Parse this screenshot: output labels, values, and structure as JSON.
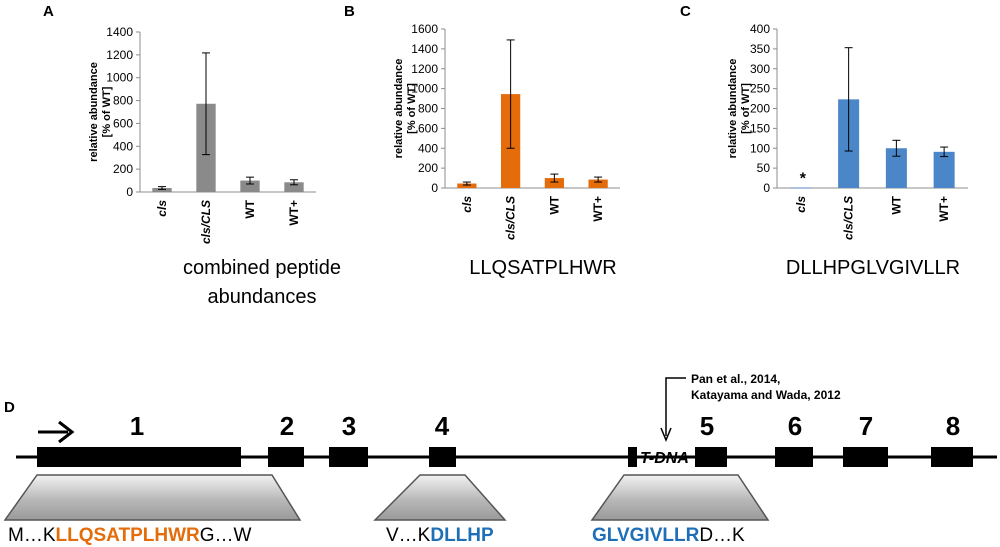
{
  "chart_data": [
    {
      "type": "bar",
      "panel": "A",
      "title": "combined peptide abundances",
      "ylabel": "relative abundance [% of WT]",
      "categories": [
        "cls",
        "cls/CLS",
        "WT",
        "WT+"
      ],
      "values": [
        35,
        772,
        100,
        85
      ],
      "errors": [
        12,
        445,
        30,
        22
      ],
      "ylim": [
        0,
        1400
      ],
      "ticks": [
        0,
        200,
        400,
        600,
        800,
        1000,
        1200,
        1400
      ],
      "color": "#8a8a8a",
      "caption": [
        "combined peptide",
        "abundances"
      ]
    },
    {
      "type": "bar",
      "panel": "B",
      "title": "LLQSATPLHWR",
      "ylabel": "relative abundance [% of WT]",
      "categories": [
        "cls",
        "cls/CLS",
        "WT",
        "WT+"
      ],
      "values": [
        45,
        945,
        100,
        85
      ],
      "errors": [
        15,
        545,
        40,
        25
      ],
      "ylim": [
        0,
        1600
      ],
      "ticks": [
        0,
        200,
        400,
        600,
        800,
        1000,
        1200,
        1400,
        1600
      ],
      "color": "#e46c0a",
      "caption": [
        "LLQSATPLHWR"
      ]
    },
    {
      "type": "bar",
      "panel": "C",
      "title": "DLLHPGLVGIVLLR",
      "ylabel": "relative abundance [% of WT]",
      "categories": [
        "cls",
        "cls/CLS",
        "WT",
        "WT+"
      ],
      "values": [
        1,
        223,
        100,
        91
      ],
      "errors": [
        0,
        130,
        20,
        12
      ],
      "ylim": [
        0,
        400
      ],
      "ticks": [
        0,
        50,
        100,
        150,
        200,
        250,
        300,
        350,
        400
      ],
      "color": "#4a86c8",
      "annotation": "*",
      "caption": [
        "DLLHPGLVGIVLLR"
      ]
    }
  ],
  "gene_diagram": {
    "panel": "D",
    "exons": [
      "1",
      "2",
      "3",
      "4",
      "5",
      "6",
      "7",
      "8"
    ],
    "insertion_label": "T-DNA",
    "reference": [
      "Pan et al., 2014,",
      "Katayama and Wada, 2012"
    ],
    "sequences": [
      [
        {
          "text": "M…K",
          "color": "#000000"
        },
        {
          "text": "LLQSATPLHWR",
          "color": "#e46c0a"
        },
        {
          "text": "G…W",
          "color": "#000000"
        }
      ],
      [
        {
          "text": "V…K",
          "color": "#000000"
        },
        {
          "text": "DLLHP",
          "color": "#1f6fb8"
        }
      ],
      [
        {
          "text": "GLVGIVLLR",
          "color": "#1f6fb8"
        },
        {
          "text": "D…K",
          "color": "#000000"
        }
      ]
    ]
  }
}
